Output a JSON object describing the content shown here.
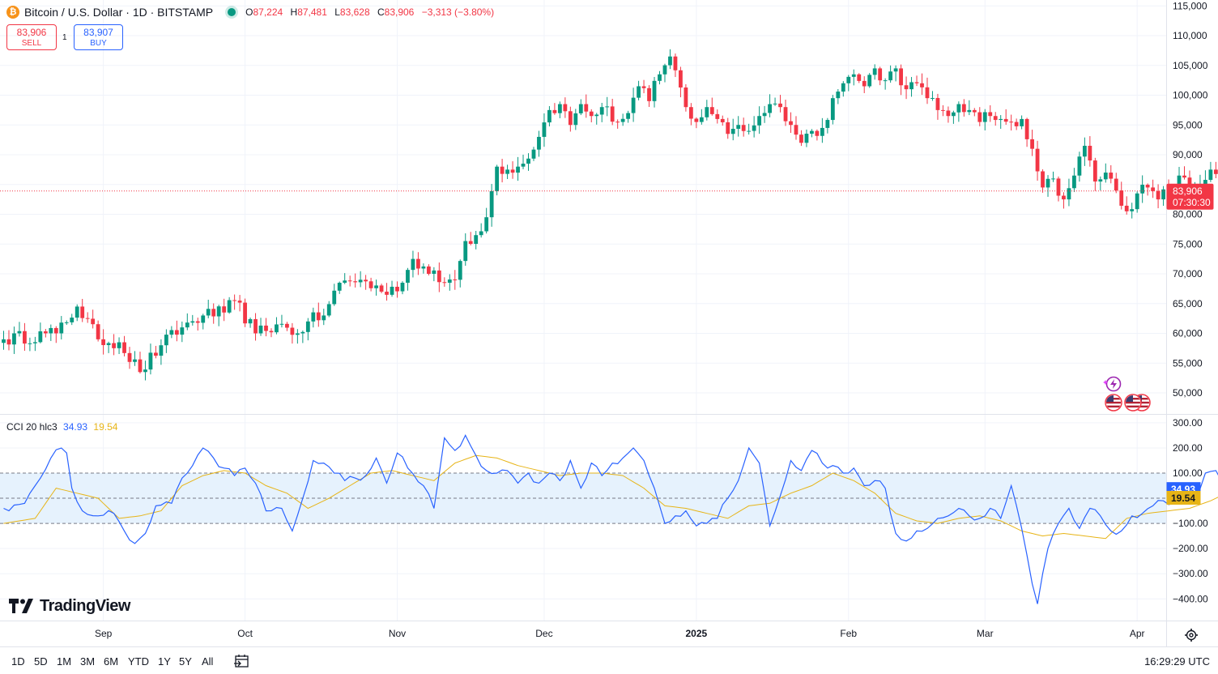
{
  "header": {
    "symbol_title": "Bitcoin / U.S. Dollar · 1D · BITSTAMP",
    "coin_glyph": "₿",
    "ohlc": {
      "o_label": "O",
      "o": "87,224",
      "h_label": "H",
      "h": "87,481",
      "l_label": "L",
      "l": "83,628",
      "c_label": "C",
      "c": "83,906",
      "change": "−3,313 (−3.80%)"
    }
  },
  "trade": {
    "sell_price": "83,906",
    "sell_label": "SELL",
    "qty": "1",
    "buy_price": "83,907",
    "buy_label": "BUY"
  },
  "indicator": {
    "name": "CCI 20 hlc3",
    "cci_value": "34.93",
    "ma_value": "19.54"
  },
  "brand": "TradingView",
  "timeframes": [
    "1D",
    "5D",
    "1M",
    "3M",
    "6M",
    "YTD",
    "1Y",
    "5Y",
    "All"
  ],
  "clock": "16:29:29 UTC",
  "colors": {
    "up": "#089981",
    "down": "#f23645",
    "cci": "#2962ff",
    "ma": "#e7b416",
    "band": "#e6f2fd"
  },
  "chart_data": [
    {
      "type": "candlestick",
      "title": "Bitcoin / U.S. Dollar · 1D · BITSTAMP",
      "ylim": [
        45000,
        115000
      ],
      "y_ticks": [
        50000,
        55000,
        60000,
        65000,
        70000,
        75000,
        80000,
        85000,
        90000,
        95000,
        100000,
        105000,
        110000,
        115000
      ],
      "y_tick_labels": [
        "50,000",
        "55,000",
        "60,000",
        "65,000",
        "70,000",
        "75,000",
        "80,000",
        "85,000",
        "90,000",
        "95,000",
        "100,000",
        "105,000",
        "110,000",
        "115,000"
      ],
      "x_labels": [
        "Sep",
        "Oct",
        "Nov",
        "Dec",
        "2025",
        "Feb",
        "Mar",
        "Apr"
      ],
      "last_price_label": "83,906",
      "countdown_label": "07:30:30",
      "close_anchors": [
        [
          0,
          59000
        ],
        [
          10,
          60000
        ],
        [
          14,
          64500
        ],
        [
          18,
          59000
        ],
        [
          22,
          58500
        ],
        [
          26,
          53500
        ],
        [
          30,
          58000
        ],
        [
          34,
          61000
        ],
        [
          38,
          63000
        ],
        [
          42,
          63500
        ],
        [
          44,
          65500
        ],
        [
          48,
          60000
        ],
        [
          52,
          61500
        ],
        [
          56,
          60000
        ],
        [
          58,
          62000
        ],
        [
          61,
          63000
        ],
        [
          64,
          68500
        ],
        [
          68,
          69000
        ],
        [
          72,
          67000
        ],
        [
          76,
          68500
        ],
        [
          78,
          72500
        ],
        [
          81,
          70000
        ],
        [
          84,
          68500
        ],
        [
          86,
          69000
        ],
        [
          88,
          75500
        ],
        [
          90,
          76500
        ],
        [
          92,
          79500
        ],
        [
          94,
          88000
        ],
        [
          96,
          87500
        ],
        [
          99,
          88500
        ],
        [
          102,
          93000
        ],
        [
          104,
          97500
        ],
        [
          106,
          98500
        ],
        [
          108,
          95000
        ],
        [
          110,
          98500
        ],
        [
          112,
          96500
        ],
        [
          114,
          98000
        ],
        [
          117,
          95500
        ],
        [
          119,
          97000
        ],
        [
          121,
          101500
        ],
        [
          123,
          99000
        ],
        [
          125,
          103500
        ],
        [
          127,
          106500
        ],
        [
          130,
          98000
        ],
        [
          132,
          95500
        ],
        [
          134,
          98000
        ],
        [
          136,
          96000
        ],
        [
          138,
          93500
        ],
        [
          140,
          95000
        ],
        [
          142,
          94000
        ],
        [
          144,
          96500
        ],
        [
          146,
          98500
        ],
        [
          148,
          98000
        ],
        [
          150,
          95000
        ],
        [
          152,
          92000
        ],
        [
          154,
          94000
        ],
        [
          156,
          94500
        ],
        [
          158,
          99500
        ],
        [
          160,
          102000
        ],
        [
          162,
          103500
        ],
        [
          164,
          101500
        ],
        [
          166,
          104500
        ],
        [
          168,
          102500
        ],
        [
          170,
          104500
        ],
        [
          172,
          101000
        ],
        [
          174,
          102000
        ],
        [
          176,
          99500
        ],
        [
          178,
          97500
        ],
        [
          180,
          96500
        ],
        [
          182,
          98500
        ],
        [
          184,
          97500
        ],
        [
          186,
          95500
        ],
        [
          188,
          96500
        ],
        [
          190,
          96000
        ],
        [
          192,
          95500
        ],
        [
          194,
          96000
        ],
        [
          196,
          91000
        ],
        [
          198,
          84500
        ],
        [
          200,
          86000
        ],
        [
          202,
          82500
        ],
        [
          204,
          86500
        ],
        [
          206,
          91500
        ],
        [
          208,
          85500
        ],
        [
          210,
          87000
        ],
        [
          212,
          84000
        ],
        [
          214,
          80500
        ],
        [
          216,
          83500
        ],
        [
          218,
          84500
        ],
        [
          220,
          82500
        ],
        [
          222,
          84000
        ],
        [
          224,
          86500
        ],
        [
          226,
          84000
        ],
        [
          228,
          85000
        ],
        [
          230,
          87500
        ],
        [
          232,
          87000
        ],
        [
          233,
          83906
        ]
      ],
      "cci_ylim": [
        -450,
        320
      ],
      "cci_ticks": [
        300,
        200,
        100,
        -100,
        -200,
        -300,
        -400
      ],
      "cci_tick_labels": [
        "300.00",
        "200.00",
        "100.00",
        "−100.00",
        "−200.00",
        "−300.00",
        "−400.00"
      ],
      "cci_band": [
        -100,
        100
      ],
      "cci_anchors": [
        [
          0,
          -40
        ],
        [
          4,
          -20
        ],
        [
          7,
          80
        ],
        [
          9,
          160
        ],
        [
          11,
          200
        ],
        [
          12,
          180
        ],
        [
          13,
          40
        ],
        [
          15,
          -50
        ],
        [
          18,
          -70
        ],
        [
          21,
          -60
        ],
        [
          23,
          -130
        ],
        [
          25,
          -180
        ],
        [
          27,
          -140
        ],
        [
          29,
          -30
        ],
        [
          32,
          -20
        ],
        [
          34,
          80
        ],
        [
          36,
          130
        ],
        [
          38,
          200
        ],
        [
          40,
          160
        ],
        [
          42,
          120
        ],
        [
          44,
          90
        ],
        [
          46,
          120
        ],
        [
          48,
          60
        ],
        [
          50,
          -50
        ],
        [
          53,
          -40
        ],
        [
          55,
          -130
        ],
        [
          57,
          0
        ],
        [
          59,
          150
        ],
        [
          61,
          140
        ],
        [
          63,
          100
        ],
        [
          65,
          70
        ],
        [
          67,
          80
        ],
        [
          69,
          90
        ],
        [
          71,
          160
        ],
        [
          73,
          60
        ],
        [
          75,
          180
        ],
        [
          77,
          120
        ],
        [
          80,
          50
        ],
        [
          82,
          -40
        ],
        [
          84,
          240
        ],
        [
          86,
          190
        ],
        [
          88,
          250
        ],
        [
          90,
          170
        ],
        [
          92,
          110
        ],
        [
          94,
          100
        ],
        [
          96,
          110
        ],
        [
          98,
          60
        ],
        [
          100,
          100
        ],
        [
          102,
          60
        ],
        [
          104,
          100
        ],
        [
          106,
          70
        ],
        [
          108,
          150
        ],
        [
          110,
          40
        ],
        [
          112,
          140
        ],
        [
          114,
          90
        ],
        [
          116,
          140
        ],
        [
          118,
          160
        ],
        [
          120,
          200
        ],
        [
          122,
          150
        ],
        [
          124,
          40
        ],
        [
          126,
          -100
        ],
        [
          128,
          -70
        ],
        [
          130,
          -50
        ],
        [
          132,
          -110
        ],
        [
          134,
          -100
        ],
        [
          136,
          -80
        ],
        [
          138,
          0
        ],
        [
          140,
          70
        ],
        [
          142,
          200
        ],
        [
          144,
          140
        ],
        [
          146,
          -110
        ],
        [
          148,
          10
        ],
        [
          150,
          150
        ],
        [
          152,
          110
        ],
        [
          154,
          190
        ],
        [
          156,
          140
        ],
        [
          158,
          130
        ],
        [
          160,
          100
        ],
        [
          162,
          120
        ],
        [
          164,
          50
        ],
        [
          166,
          70
        ],
        [
          168,
          40
        ],
        [
          170,
          -140
        ],
        [
          172,
          -170
        ],
        [
          174,
          -130
        ],
        [
          176,
          -120
        ],
        [
          178,
          -80
        ],
        [
          180,
          -70
        ],
        [
          182,
          -40
        ],
        [
          184,
          -70
        ],
        [
          186,
          -80
        ],
        [
          188,
          -40
        ],
        [
          190,
          -80
        ],
        [
          192,
          50
        ],
        [
          194,
          -120
        ],
        [
          196,
          -340
        ],
        [
          197,
          -420
        ],
        [
          199,
          -200
        ],
        [
          201,
          -100
        ],
        [
          203,
          -40
        ],
        [
          205,
          -120
        ],
        [
          207,
          -40
        ],
        [
          209,
          -70
        ],
        [
          211,
          -130
        ],
        [
          213,
          -130
        ],
        [
          215,
          -70
        ],
        [
          217,
          -60
        ],
        [
          219,
          -30
        ],
        [
          221,
          -10
        ],
        [
          223,
          -20
        ],
        [
          225,
          20
        ],
        [
          227,
          0
        ],
        [
          229,
          100
        ],
        [
          231,
          110
        ],
        [
          233,
          35
        ]
      ],
      "cci_ma_anchors": [
        [
          0,
          -100
        ],
        [
          6,
          -80
        ],
        [
          10,
          40
        ],
        [
          14,
          20
        ],
        [
          18,
          0
        ],
        [
          22,
          -80
        ],
        [
          26,
          -70
        ],
        [
          30,
          -50
        ],
        [
          34,
          50
        ],
        [
          38,
          90
        ],
        [
          42,
          110
        ],
        [
          46,
          100
        ],
        [
          50,
          50
        ],
        [
          54,
          20
        ],
        [
          58,
          -40
        ],
        [
          62,
          0
        ],
        [
          66,
          50
        ],
        [
          70,
          100
        ],
        [
          74,
          110
        ],
        [
          78,
          90
        ],
        [
          82,
          70
        ],
        [
          86,
          140
        ],
        [
          90,
          170
        ],
        [
          94,
          160
        ],
        [
          98,
          130
        ],
        [
          102,
          110
        ],
        [
          106,
          90
        ],
        [
          110,
          100
        ],
        [
          114,
          100
        ],
        [
          118,
          90
        ],
        [
          122,
          40
        ],
        [
          126,
          -30
        ],
        [
          130,
          -40
        ],
        [
          134,
          -60
        ],
        [
          138,
          -80
        ],
        [
          142,
          -30
        ],
        [
          146,
          -20
        ],
        [
          150,
          20
        ],
        [
          154,
          50
        ],
        [
          158,
          100
        ],
        [
          162,
          70
        ],
        [
          166,
          20
        ],
        [
          170,
          -60
        ],
        [
          174,
          -90
        ],
        [
          178,
          -100
        ],
        [
          182,
          -80
        ],
        [
          186,
          -70
        ],
        [
          190,
          -90
        ],
        [
          194,
          -130
        ],
        [
          198,
          -150
        ],
        [
          202,
          -140
        ],
        [
          206,
          -150
        ],
        [
          210,
          -160
        ],
        [
          214,
          -80
        ],
        [
          218,
          -60
        ],
        [
          222,
          -50
        ],
        [
          226,
          -40
        ],
        [
          230,
          -10
        ],
        [
          233,
          19.54
        ]
      ]
    }
  ]
}
